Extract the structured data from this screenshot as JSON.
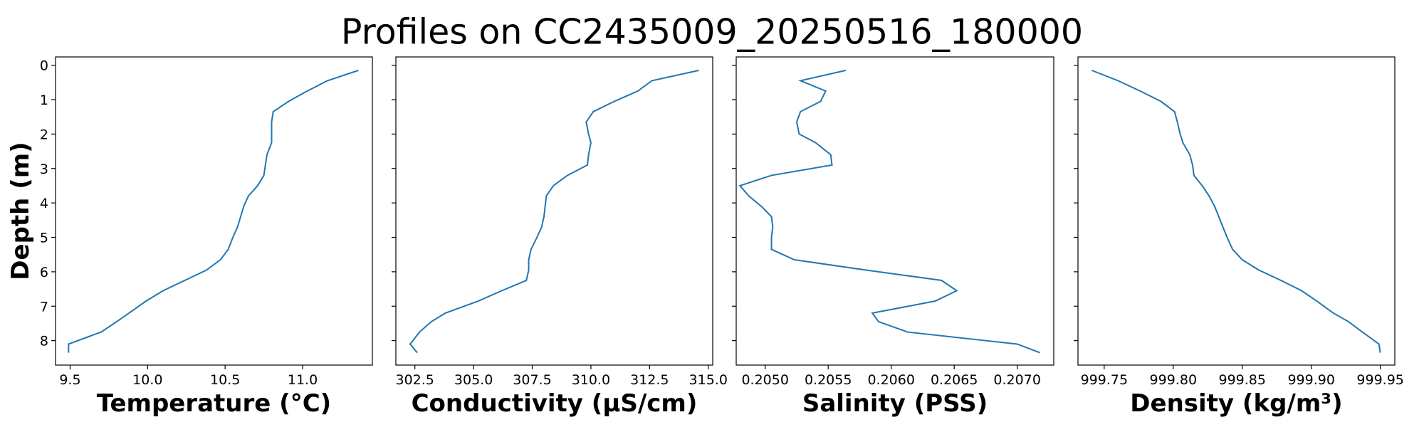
{
  "title": "Profiles on CC2435009_20250516_180000",
  "chart_data": [
    {
      "type": "line",
      "xlabel": "Temperature (°C)",
      "ylabel": "Depth (m)",
      "inverted_y": true,
      "xlim": [
        9.406,
        11.45
      ],
      "ylim": [
        -0.24,
        8.71
      ],
      "xticks": [
        9.5,
        {
          "value": 10,
          "label": "10.0"
        },
        10.5,
        {
          "value": 11,
          "label": "11.0"
        }
      ],
      "yticks": [
        0,
        1,
        2,
        3,
        4,
        5,
        6,
        7,
        8
      ],
      "series": [
        {
          "color": "#1f77b4",
          "x": [
            11.36,
            11.16,
            11.03,
            10.91,
            10.81,
            10.8,
            10.8,
            10.8,
            10.77,
            10.76,
            10.75,
            10.71,
            10.65,
            10.62,
            10.6,
            10.58,
            10.55,
            10.52,
            10.47,
            10.38,
            10.24,
            10.1,
            9.99,
            9.88,
            9.8,
            9.7,
            9.49,
            9.49
          ],
          "y": [
            0.15,
            0.45,
            0.75,
            1.05,
            1.35,
            1.65,
            2.0,
            2.25,
            2.6,
            2.9,
            3.2,
            3.5,
            3.8,
            4.1,
            4.4,
            4.7,
            5.0,
            5.35,
            5.65,
            5.95,
            6.25,
            6.55,
            6.85,
            7.2,
            7.45,
            7.75,
            8.1,
            8.35
          ]
        }
      ]
    },
    {
      "type": "line",
      "xlabel": "Conductivity (µS/cm)",
      "inverted_y": true,
      "xlim": [
        301.69,
        315.19
      ],
      "ylim": [
        -0.24,
        8.71
      ],
      "xticks": [
        302.5,
        {
          "value": 305,
          "label": "305.0"
        },
        307.5,
        {
          "value": 310,
          "label": "310.0"
        },
        312.5,
        {
          "value": 315,
          "label": "315.0"
        }
      ],
      "yticks": [
        0,
        1,
        2,
        3,
        4,
        5,
        6,
        7,
        8
      ],
      "series": [
        {
          "color": "#1f77b4",
          "x": [
            314.6,
            312.6,
            312.0,
            311.0,
            310.1,
            309.8,
            309.9,
            310.0,
            309.9,
            309.85,
            309.0,
            308.4,
            308.1,
            308.05,
            308.0,
            307.9,
            307.7,
            307.45,
            307.35,
            307.35,
            307.25,
            306.2,
            305.2,
            303.8,
            303.2,
            302.7,
            302.3,
            302.6
          ],
          "y": [
            0.15,
            0.45,
            0.75,
            1.05,
            1.35,
            1.65,
            2.0,
            2.25,
            2.6,
            2.9,
            3.2,
            3.5,
            3.8,
            4.1,
            4.4,
            4.7,
            5.0,
            5.35,
            5.65,
            5.95,
            6.25,
            6.55,
            6.85,
            7.2,
            7.45,
            7.75,
            8.1,
            8.35
          ]
        }
      ]
    },
    {
      "type": "line",
      "xlabel": "Salinity (PSS)",
      "inverted_y": true,
      "xlim": [
        0.20477,
        0.20729
      ],
      "ylim": [
        -0.24,
        8.71
      ],
      "xticks": [
        {
          "value": 0.205,
          "label": "0.2050"
        },
        0.2055,
        {
          "value": 0.206,
          "label": "0.2060"
        },
        0.2065,
        {
          "value": 0.207,
          "label": "0.2070"
        }
      ],
      "yticks": [
        0,
        1,
        2,
        3,
        4,
        5,
        6,
        7,
        8
      ],
      "series": [
        {
          "color": "#1f77b4",
          "x": [
            0.20564,
            0.20528,
            0.20548,
            0.20544,
            0.20528,
            0.20525,
            0.20527,
            0.2054,
            0.20552,
            0.20553,
            0.20505,
            0.2048,
            0.20487,
            0.20497,
            0.20505,
            0.20506,
            0.20505,
            0.20505,
            0.20523,
            0.2058,
            0.2064,
            0.20652,
            0.20635,
            0.20585,
            0.2059,
            0.20613,
            0.207,
            0.20718
          ],
          "y": [
            0.15,
            0.45,
            0.75,
            1.05,
            1.35,
            1.65,
            2.0,
            2.25,
            2.6,
            2.9,
            3.2,
            3.5,
            3.8,
            4.1,
            4.4,
            4.7,
            5.0,
            5.35,
            5.65,
            5.95,
            6.25,
            6.55,
            6.85,
            7.2,
            7.45,
            7.75,
            8.1,
            8.35
          ]
        }
      ]
    },
    {
      "type": "line",
      "xlabel": "Density (kg/m³)",
      "inverted_y": true,
      "xlim": [
        999.731,
        999.9605
      ],
      "ylim": [
        -0.24,
        8.71
      ],
      "xticks": [
        999.75,
        {
          "value": 999.8,
          "label": "999.80"
        },
        999.85,
        {
          "value": 999.9,
          "label": "999.90"
        },
        999.95
      ],
      "yticks": [
        0,
        1,
        2,
        3,
        4,
        5,
        6,
        7,
        8
      ],
      "series": [
        {
          "color": "#1f77b4",
          "x": [
            999.741,
            999.76,
            999.776,
            999.791,
            999.801,
            999.803,
            999.805,
            999.807,
            999.812,
            999.814,
            999.815,
            999.821,
            999.826,
            999.83,
            999.833,
            999.836,
            999.839,
            999.843,
            999.85,
            999.862,
            999.878,
            999.893,
            999.904,
            999.916,
            999.927,
            999.937,
            999.949,
            999.95
          ],
          "y": [
            0.15,
            0.45,
            0.75,
            1.05,
            1.35,
            1.65,
            2.0,
            2.25,
            2.6,
            2.9,
            3.2,
            3.5,
            3.8,
            4.1,
            4.4,
            4.7,
            5.0,
            5.35,
            5.65,
            5.95,
            6.25,
            6.55,
            6.85,
            7.2,
            7.45,
            7.75,
            8.1,
            8.35
          ]
        }
      ]
    }
  ]
}
